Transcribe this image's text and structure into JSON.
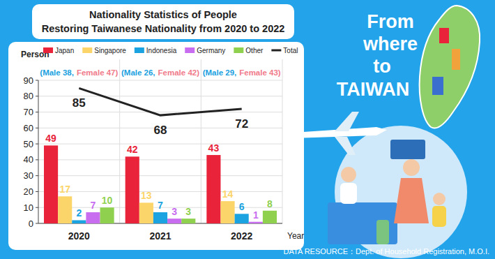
{
  "chart_data": {
    "type": "bar",
    "title": [
      "Nationality Statistics of People",
      "Restoring Taiwanese Nationality from 2020 to 2022"
    ],
    "y_label": "Person",
    "x_label": "Year",
    "categories": [
      "2020",
      "2021",
      "2022"
    ],
    "series": [
      {
        "name": "Japan",
        "color": "#e8233a",
        "values": [
          49,
          42,
          43
        ]
      },
      {
        "name": "Singapore",
        "color": "#fcd56a",
        "values": [
          17,
          13,
          14
        ]
      },
      {
        "name": "Indonesia",
        "color": "#1aa3e0",
        "values": [
          2,
          7,
          6
        ]
      },
      {
        "name": "Germany",
        "color": "#c86cf0",
        "values": [
          7,
          3,
          1
        ]
      },
      {
        "name": "Other",
        "color": "#8fd14f",
        "values": [
          10,
          3,
          8
        ]
      },
      {
        "name": "Total",
        "type": "line",
        "color": "#222222",
        "values": [
          85,
          68,
          72
        ]
      }
    ],
    "ylim": [
      0,
      90
    ],
    "yticks": [
      0,
      10,
      20,
      30,
      40,
      50,
      60,
      70,
      80,
      90
    ],
    "grid": true,
    "data_labels": true,
    "legend": "top",
    "annotations": {
      "gender": [
        {
          "male": "(Male 38,",
          "female": "Female 47)"
        },
        {
          "male": "(Male 26,",
          "female": "Female 42)"
        },
        {
          "male": "(Male 29,",
          "female": "Female 43)"
        }
      ],
      "tagline": [
        "From",
        "where",
        "to",
        "TAIWAN"
      ],
      "source": "DATA RESOURCE：Dept. of Household Registration, M.O.I."
    }
  }
}
